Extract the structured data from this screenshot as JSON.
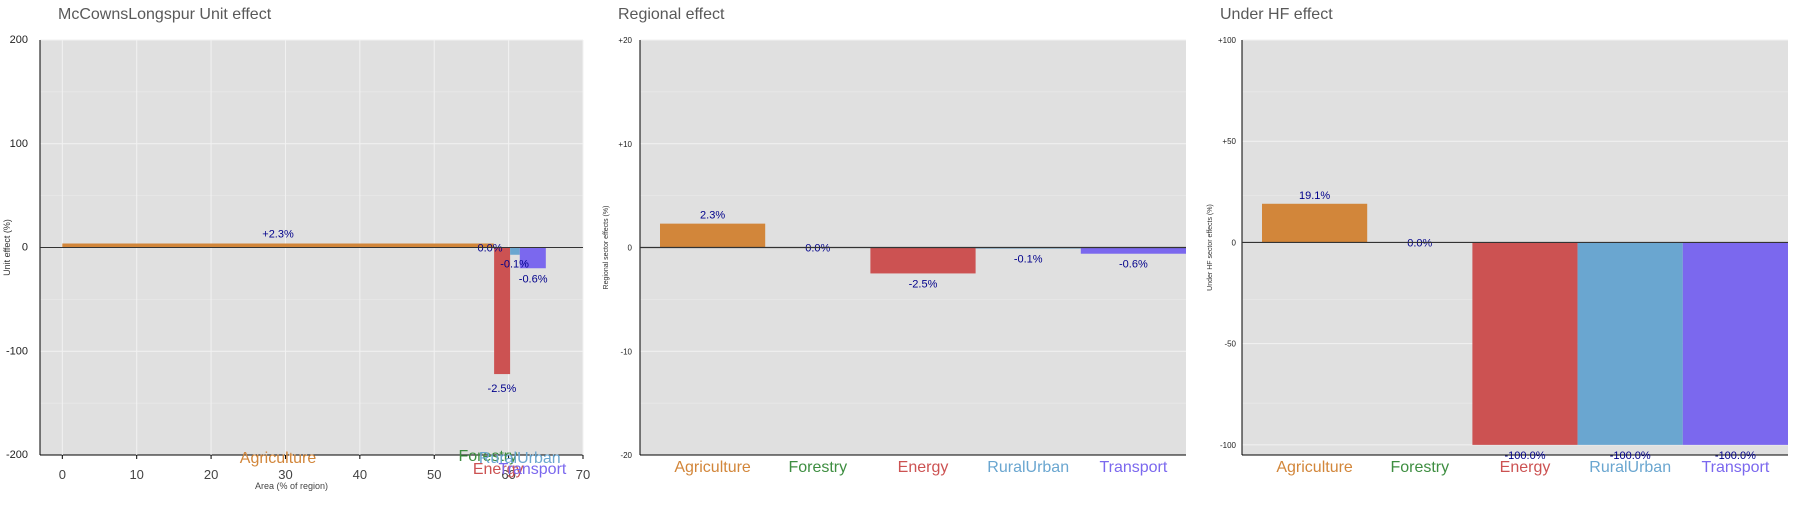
{
  "colors": {
    "panel_bg": "#e0e0e0",
    "grid": "#f2f2f2",
    "zero_line": "#333333",
    "title": "#595959",
    "value_label": "#00008b",
    "sectors": {
      "Agriculture": "#d2863a",
      "Forestry": "#3e8e41",
      "Energy": "#cc5252",
      "RuralUrban": "#6aa6d0",
      "Transport": "#7b68ee"
    }
  },
  "chart_data": [
    {
      "type": "bar",
      "title": "McCownsLongspur Unit effect",
      "xlabel": "Area (% of region)",
      "ylabel": "Unit effect (%)",
      "xlim": [
        -3,
        70
      ],
      "ylim": [
        -200,
        200
      ],
      "x_ticks": [
        "0",
        "10",
        "20",
        "30",
        "40",
        "50",
        "60",
        "70"
      ],
      "y_ticks": [
        "-200",
        "-100",
        "0",
        "100",
        "200"
      ],
      "bars": [
        {
          "sector": "Agriculture",
          "x_start": 0,
          "x_end": 58.0,
          "value": 2.3,
          "label": "+2.3%"
        },
        {
          "sector": "Forestry",
          "x_start": 58.0,
          "x_end": 58.05,
          "value": 0,
          "label": "0.0%"
        },
        {
          "sector": "Energy",
          "x_start": 58.05,
          "x_end": 60.2,
          "value": -122,
          "label": "-2.5%"
        },
        {
          "sector": "RuralUrban",
          "x_start": 60.2,
          "x_end": 61.5,
          "value": -7,
          "label": "-0.1%"
        },
        {
          "sector": "Transport",
          "x_start": 61.5,
          "x_end": 65.0,
          "value": -20,
          "label": "-0.6%"
        }
      ],
      "category_labels": [
        "Agriculture",
        "Forestry",
        "Energy",
        "RuralUrban",
        "Transport"
      ]
    },
    {
      "type": "bar",
      "title": "Regional effect",
      "ylabel": "Regional sector effects (%)",
      "ylim": [
        -20,
        20
      ],
      "y_ticks": [
        "-20",
        "-10",
        "0",
        "+10",
        "+20"
      ],
      "categories": [
        "Agriculture",
        "Forestry",
        "Energy",
        "RuralUrban",
        "Transport"
      ],
      "values": [
        2.3,
        0.0,
        -2.5,
        -0.1,
        -0.6
      ],
      "value_labels": [
        "2.3%",
        "0.0%",
        "-2.5%",
        "-0.1%",
        "-0.6%"
      ]
    },
    {
      "type": "bar",
      "title": "Under HF effect",
      "ylabel": "Under HF sector effects (%)",
      "ylim": [
        -105,
        100
      ],
      "y_ticks": [
        "-100",
        "-50",
        "0",
        "+50",
        "+100"
      ],
      "categories": [
        "Agriculture",
        "Forestry",
        "Energy",
        "RuralUrban",
        "Transport"
      ],
      "values": [
        19.1,
        0.0,
        -100.0,
        -100.0,
        -100.0
      ],
      "value_labels": [
        "19.1%",
        "0.0%",
        "-100.0%",
        "-100.0%",
        "-100.0%"
      ]
    }
  ]
}
